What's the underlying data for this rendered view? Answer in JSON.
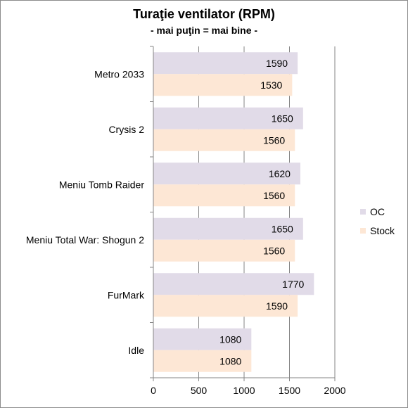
{
  "chart_data": {
    "type": "bar",
    "orientation": "horizontal",
    "title": "Turaţie ventilator (RPM)",
    "subtitle": "- mai puţin = mai bine -",
    "categories": [
      "Metro 2033",
      "Crysis 2",
      "Meniu Tomb Raider",
      "Meniu Total War: Shogun 2",
      "FurMark",
      "Idle"
    ],
    "series": [
      {
        "name": "OC",
        "color": "#e1dbe8",
        "values": [
          1590,
          1650,
          1620,
          1650,
          1770,
          1080
        ]
      },
      {
        "name": "Stock",
        "color": "#fde7d5",
        "values": [
          1530,
          1560,
          1560,
          1560,
          1590,
          1080
        ]
      }
    ],
    "xlim": [
      0,
      2000
    ],
    "xticks": [
      0,
      500,
      1000,
      1500,
      2000
    ],
    "xgrid": true,
    "data_labels": true,
    "legend_position": "right"
  }
}
